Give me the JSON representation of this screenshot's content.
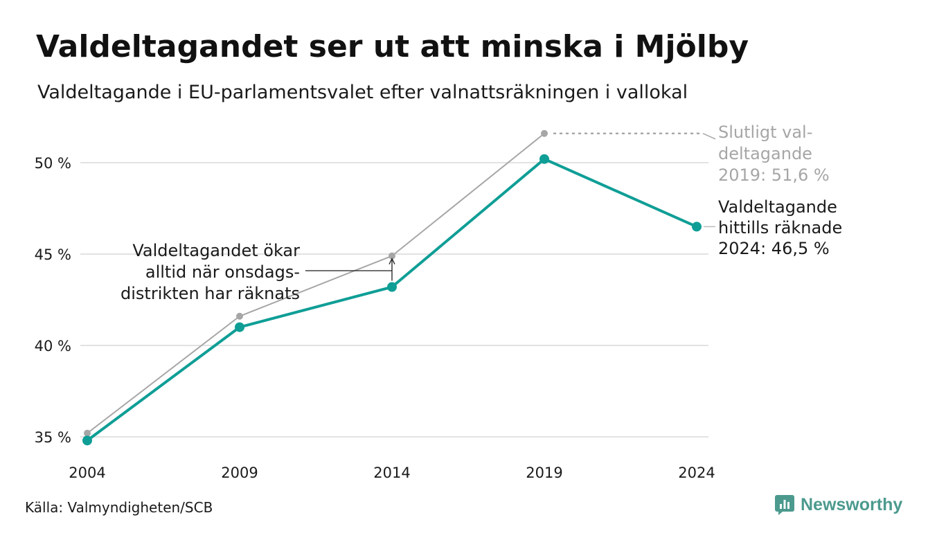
{
  "header": {
    "title": "Valdeltagandet ser ut att minska i Mjölby",
    "subtitle": "Valdeltagande i EU-parlamentsvalet efter valnattsräkningen i vallokal"
  },
  "chart_data": {
    "type": "line",
    "x": [
      "2004",
      "2009",
      "2014",
      "2019",
      "2024"
    ],
    "y_ticks": [
      {
        "value": 35,
        "label": "35 %"
      },
      {
        "value": 40,
        "label": "40 %"
      },
      {
        "value": 45,
        "label": "45 %"
      },
      {
        "value": 50,
        "label": "50 %"
      }
    ],
    "ylim": [
      35,
      50
    ],
    "grid": true,
    "series": [
      {
        "key": "final",
        "color": "#a6a6a6",
        "values": [
          35.2,
          41.6,
          44.9,
          51.6,
          null
        ]
      },
      {
        "key": "election_night",
        "color": "#0f9e96",
        "values": [
          34.8,
          41.0,
          43.2,
          50.2,
          46.5
        ]
      }
    ],
    "annotations": {
      "final_2019": [
        "Slutligt val-",
        "deltagande",
        "2019: 51,6 %"
      ],
      "current_2024": [
        "Valdeltagande",
        "hittills räknade",
        "2024: 46,5 %"
      ],
      "wednesday_note": [
        "Valdeltagandet ökar",
        "alltid när onsdags-",
        "distrikten har räknats"
      ]
    }
  },
  "footer": {
    "source": "Källa: Valmyndigheten/SCB",
    "brand": "Newsworthy",
    "brand_color": "#4c9a8e"
  }
}
